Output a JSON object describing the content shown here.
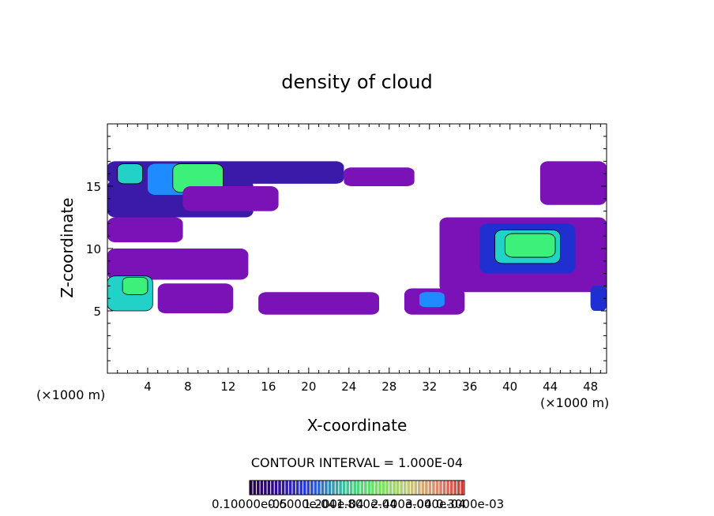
{
  "chart_data": {
    "type": "heatmap",
    "title": "density of cloud",
    "xlabel": "X-coordinate",
    "ylabel": "Z-coordinate",
    "x_unit_left": "(×1000 m)",
    "x_unit_right": "(×1000 m)",
    "xlim": [
      0,
      49.6
    ],
    "ylim": [
      0,
      20
    ],
    "x_ticks": [
      4,
      8,
      12,
      16,
      20,
      24,
      28,
      32,
      36,
      40,
      44,
      48
    ],
    "y_ticks": [
      5,
      10,
      15
    ],
    "contour_interval_text": "CONTOUR INTERVAL = 1.000E-04",
    "colorbar_labels_text": "0.10000e-05",
    "colorbar_labels_overlap": [
      "0.6000e-04",
      "1.200e-04",
      "1.800e-04",
      "2.400e-04",
      "3.000e-04"
    ],
    "colorbar_labels_tail": "0.3000e-03",
    "colors": {
      "level1": "#7a12b8",
      "level2": "#3a1aa8",
      "level3": "#1f2fd0",
      "level4": "#1e8cff",
      "level5": "#22d2c8",
      "level6": "#3cf07a",
      "contour": "#000000"
    },
    "regions": [
      {
        "x": [
          0,
          23.5
        ],
        "z": [
          15.2,
          17.0
        ],
        "level": 2
      },
      {
        "x": [
          23.5,
          30.5
        ],
        "z": [
          15.0,
          16.5
        ],
        "level": 1
      },
      {
        "x": [
          0,
          14.5
        ],
        "z": [
          12.5,
          15.5
        ],
        "level": 2
      },
      {
        "x": [
          4,
          8
        ],
        "z": [
          14.3,
          16.8
        ],
        "level": 4
      },
      {
        "x": [
          6.5,
          11.5
        ],
        "z": [
          14.5,
          16.8
        ],
        "level": 6
      },
      {
        "x": [
          1,
          3.5
        ],
        "z": [
          15.2,
          16.8
        ],
        "level": 5
      },
      {
        "x": [
          7.5,
          17
        ],
        "z": [
          13.0,
          15.0
        ],
        "level": 1
      },
      {
        "x": [
          0,
          7.5
        ],
        "z": [
          10.5,
          12.5
        ],
        "level": 1
      },
      {
        "x": [
          0,
          14
        ],
        "z": [
          7.5,
          10.0
        ],
        "level": 1
      },
      {
        "x": [
          0,
          4.5
        ],
        "z": [
          5.0,
          7.8
        ],
        "level": 5
      },
      {
        "x": [
          1.5,
          4
        ],
        "z": [
          6.3,
          7.7
        ],
        "level": 6
      },
      {
        "x": [
          5,
          12.5
        ],
        "z": [
          4.8,
          7.2
        ],
        "level": 1
      },
      {
        "x": [
          15,
          27
        ],
        "z": [
          4.7,
          6.5
        ],
        "level": 1
      },
      {
        "x": [
          29.5,
          35.5
        ],
        "z": [
          4.7,
          6.8
        ],
        "level": 1
      },
      {
        "x": [
          31,
          33.5
        ],
        "z": [
          5.3,
          6.5
        ],
        "level": 4
      },
      {
        "x": [
          33,
          49.6
        ],
        "z": [
          6.5,
          12.5
        ],
        "level": 1
      },
      {
        "x": [
          37,
          46.5
        ],
        "z": [
          8.0,
          12.0
        ],
        "level": 3
      },
      {
        "x": [
          38.5,
          45
        ],
        "z": [
          8.8,
          11.5
        ],
        "level": 5
      },
      {
        "x": [
          39.5,
          44.5
        ],
        "z": [
          9.3,
          11.2
        ],
        "level": 6
      },
      {
        "x": [
          43,
          49.6
        ],
        "z": [
          13.5,
          17.0
        ],
        "level": 1
      },
      {
        "x": [
          48,
          49.6
        ],
        "z": [
          5.0,
          7.0
        ],
        "level": 3
      }
    ]
  }
}
